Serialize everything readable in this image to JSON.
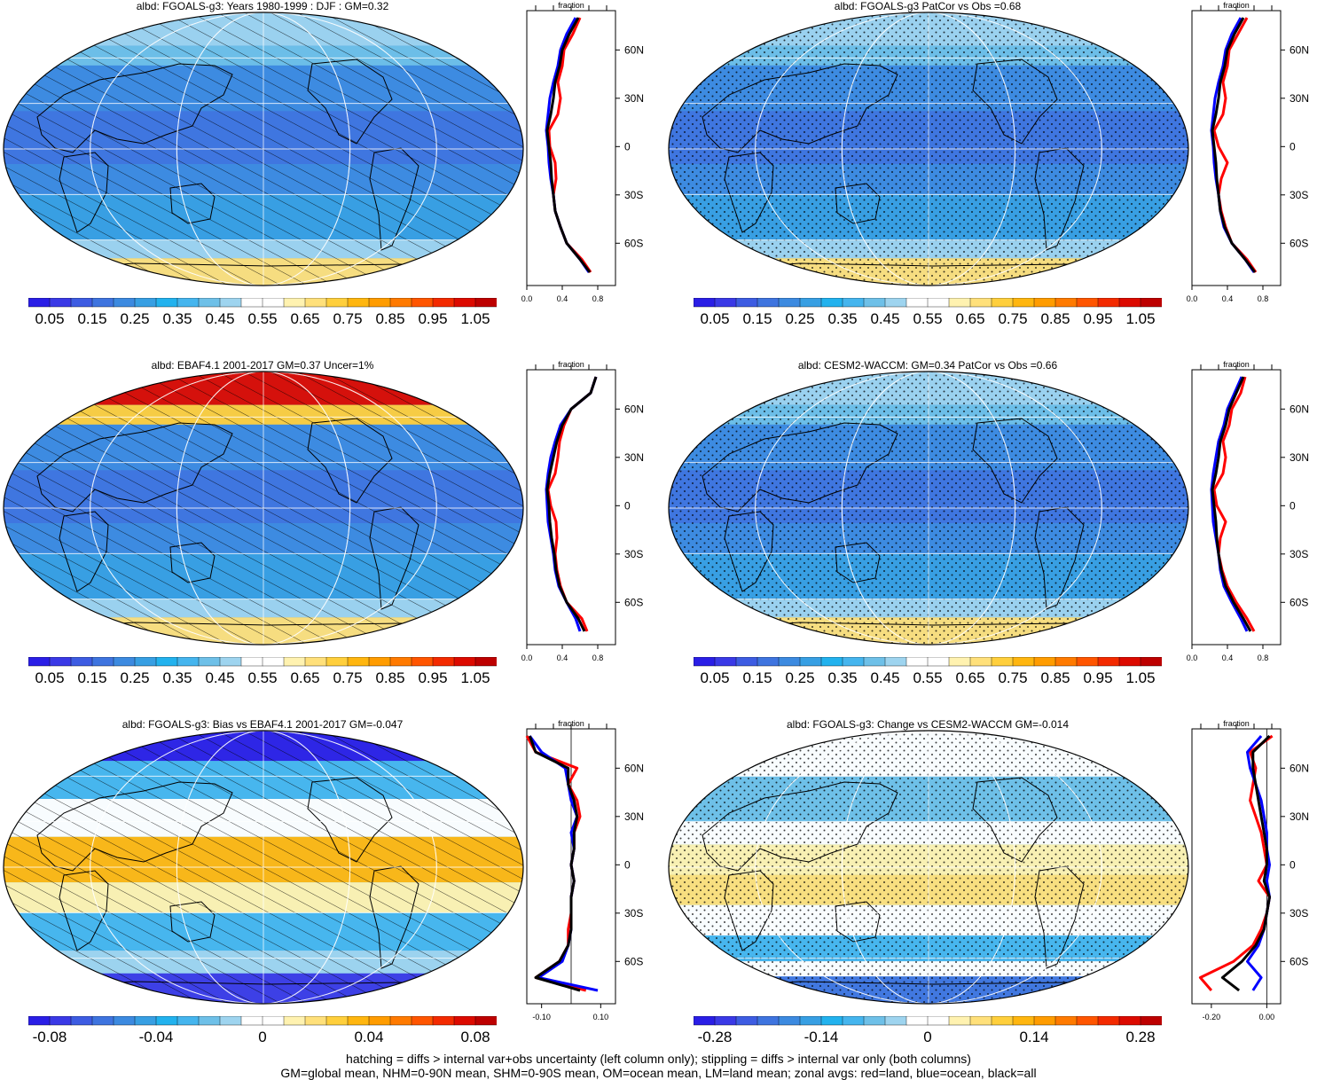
{
  "palettes": {
    "abs": [
      "#2a1ee6",
      "#3a39e6",
      "#3d5ce2",
      "#3e74df",
      "#3c8ae0",
      "#379fe3",
      "#22b2ee",
      "#45b5ee",
      "#6ec0e8",
      "#9ed4ef",
      "#ffffff",
      "#ffffff",
      "#fff2b0",
      "#ffe07a",
      "#ffcf3c",
      "#ffb60f",
      "#ff9c00",
      "#ff7a00",
      "#ff5500",
      "#f32a00",
      "#dc0a00",
      "#bd0000"
    ],
    "diff": [
      "#2a1ee6",
      "#3a39e6",
      "#3d5ce2",
      "#3e74df",
      "#3c8ae0",
      "#379fe3",
      "#22b2ee",
      "#45b5ee",
      "#6ec0e8",
      "#9ed4ef",
      "#ffffff",
      "#ffffff",
      "#fff2b0",
      "#ffe07a",
      "#ffcf3c",
      "#ffb60f",
      "#ff9c00",
      "#ff7a00",
      "#ff5500",
      "#f32a00",
      "#dc0a00",
      "#bd0000"
    ],
    "zonal_colors": {
      "land": "#ff0000",
      "ocean": "#0000ff",
      "all": "#000000"
    },
    "base_map": "#4a98e0"
  },
  "lat_labels": [
    "60N",
    "30N",
    "0",
    "30S",
    "60S"
  ],
  "panels": [
    {
      "title": "albd: FGOALS-g3: Years 1980-1999 : DJF : GM=0.32",
      "pattern": "hatch",
      "kind": "abs",
      "colorbar_labels": [
        "0.05",
        "0.15",
        "0.25",
        "0.35",
        "0.45",
        "0.55",
        "0.65",
        "0.75",
        "0.85",
        "0.95",
        "1.05"
      ],
      "zonal": {
        "label": "fraction",
        "xlim": [
          0,
          1.0
        ],
        "xticks": [
          "0.0",
          "0.4",
          "0.8"
        ],
        "lat": [
          -78,
          -70,
          -60,
          -50,
          -40,
          -30,
          -20,
          -10,
          0,
          10,
          20,
          30,
          40,
          50,
          60,
          70,
          80
        ],
        "land": [
          0.72,
          0.62,
          0.45,
          0.38,
          0.32,
          0.3,
          0.33,
          0.32,
          0.26,
          0.25,
          0.35,
          0.38,
          0.35,
          0.4,
          0.42,
          0.52,
          0.6
        ],
        "ocean": [
          0.7,
          0.6,
          0.45,
          0.38,
          0.32,
          0.3,
          0.27,
          0.25,
          0.24,
          0.22,
          0.24,
          0.26,
          0.3,
          0.35,
          0.38,
          0.45,
          0.55
        ],
        "all": [
          0.71,
          0.6,
          0.45,
          0.38,
          0.32,
          0.3,
          0.28,
          0.27,
          0.25,
          0.23,
          0.27,
          0.3,
          0.32,
          0.37,
          0.4,
          0.48,
          0.58
        ]
      }
    },
    {
      "title": "albd: FGOALS-g3 PatCor vs Obs =0.68",
      "pattern": "stipple",
      "kind": "abs",
      "colorbar_labels": [
        "0.05",
        "0.15",
        "0.25",
        "0.35",
        "0.45",
        "0.55",
        "0.65",
        "0.75",
        "0.85",
        "0.95",
        "1.05"
      ],
      "zonal": {
        "label": "fraction",
        "xlim": [
          0,
          1.0
        ],
        "xticks": [
          "0.0",
          "0.4",
          "0.8"
        ],
        "lat": [
          -78,
          -70,
          -60,
          -50,
          -40,
          -30,
          -20,
          -10,
          0,
          10,
          20,
          30,
          40,
          50,
          60,
          70,
          80
        ],
        "land": [
          0.72,
          0.62,
          0.45,
          0.38,
          0.33,
          0.3,
          0.33,
          0.4,
          0.3,
          0.25,
          0.35,
          0.38,
          0.35,
          0.4,
          0.42,
          0.52,
          0.62
        ],
        "ocean": [
          0.7,
          0.6,
          0.45,
          0.36,
          0.32,
          0.3,
          0.27,
          0.25,
          0.24,
          0.22,
          0.24,
          0.26,
          0.3,
          0.35,
          0.38,
          0.45,
          0.55
        ],
        "all": [
          0.71,
          0.6,
          0.45,
          0.37,
          0.32,
          0.3,
          0.28,
          0.27,
          0.25,
          0.23,
          0.27,
          0.3,
          0.32,
          0.37,
          0.4,
          0.48,
          0.58
        ]
      }
    },
    {
      "title": "albd: EBAF4.1 2001-2017 GM=0.37 Uncer=1%",
      "pattern": "hatch",
      "kind": "abs",
      "colorbar_labels": [
        "0.05",
        "0.15",
        "0.25",
        "0.35",
        "0.45",
        "0.55",
        "0.65",
        "0.75",
        "0.85",
        "0.95",
        "1.05"
      ],
      "zonal": {
        "label": "fraction",
        "xlim": [
          0,
          1.0
        ],
        "xticks": [
          "0.0",
          "0.4",
          "0.8"
        ],
        "lat": [
          -78,
          -70,
          -60,
          -50,
          -40,
          -30,
          -20,
          -10,
          0,
          10,
          20,
          30,
          40,
          50,
          60,
          70,
          80
        ],
        "land": [
          0.68,
          0.62,
          0.45,
          0.38,
          0.34,
          0.32,
          0.34,
          0.33,
          0.27,
          0.24,
          0.32,
          0.35,
          0.37,
          0.42,
          0.5,
          0.72,
          0.78
        ],
        "ocean": [
          0.6,
          0.55,
          0.45,
          0.36,
          0.32,
          0.3,
          0.27,
          0.24,
          0.23,
          0.22,
          0.24,
          0.27,
          0.32,
          0.38,
          0.5,
          0.72,
          0.78
        ],
        "all": [
          0.65,
          0.58,
          0.45,
          0.37,
          0.33,
          0.31,
          0.28,
          0.26,
          0.25,
          0.23,
          0.26,
          0.3,
          0.34,
          0.4,
          0.5,
          0.72,
          0.78
        ]
      }
    },
    {
      "title": "albd: CESM2-WACCM: GM=0.34 PatCor vs Obs =0.66",
      "pattern": "stipple",
      "kind": "abs",
      "colorbar_labels": [
        "0.05",
        "0.15",
        "0.25",
        "0.35",
        "0.45",
        "0.55",
        "0.65",
        "0.75",
        "0.85",
        "0.95",
        "1.05"
      ],
      "zonal": {
        "label": "fraction",
        "xlim": [
          0,
          1.0
        ],
        "xticks": [
          "0.0",
          "0.4",
          "0.8"
        ],
        "lat": [
          -78,
          -70,
          -60,
          -50,
          -40,
          -30,
          -20,
          -10,
          0,
          10,
          20,
          30,
          40,
          50,
          60,
          70,
          80
        ],
        "land": [
          0.7,
          0.62,
          0.5,
          0.4,
          0.34,
          0.3,
          0.32,
          0.38,
          0.28,
          0.25,
          0.35,
          0.38,
          0.35,
          0.42,
          0.45,
          0.55,
          0.6
        ],
        "ocean": [
          0.62,
          0.55,
          0.45,
          0.36,
          0.32,
          0.3,
          0.27,
          0.24,
          0.23,
          0.22,
          0.24,
          0.27,
          0.3,
          0.36,
          0.4,
          0.48,
          0.56
        ],
        "all": [
          0.66,
          0.58,
          0.47,
          0.38,
          0.33,
          0.3,
          0.28,
          0.27,
          0.25,
          0.23,
          0.27,
          0.3,
          0.32,
          0.38,
          0.42,
          0.5,
          0.58
        ]
      }
    },
    {
      "title": "albd: FGOALS-g3: Bias vs EBAF4.1 2001-2017 GM=-0.047",
      "pattern": "hatch",
      "kind": "diff",
      "colorbar_labels": [
        "-0.08",
        "-0.04",
        "0",
        "0.04",
        "0.08"
      ],
      "zonal": {
        "label": "fraction",
        "xlim": [
          -0.15,
          0.15
        ],
        "xticks": [
          "-0.10",
          "0.10"
        ],
        "lat": [
          -78,
          -70,
          -60,
          -50,
          -40,
          -30,
          -20,
          -10,
          0,
          10,
          20,
          30,
          40,
          50,
          60,
          70,
          80
        ],
        "land": [
          0.05,
          -0.12,
          -0.04,
          -0.01,
          -0.01,
          0.0,
          0.0,
          0.01,
          0.0,
          0.01,
          0.01,
          0.03,
          0.02,
          -0.01,
          0.02,
          -0.12,
          -0.15
        ],
        "ocean": [
          0.09,
          -0.11,
          -0.03,
          -0.01,
          0.0,
          0.0,
          0.0,
          0.01,
          0.0,
          0.01,
          0.0,
          0.02,
          0.0,
          -0.01,
          -0.02,
          -0.1,
          -0.14
        ],
        "all": [
          0.03,
          -0.12,
          -0.04,
          -0.01,
          0.0,
          0.0,
          0.0,
          0.01,
          0.0,
          0.01,
          0.01,
          0.02,
          0.01,
          -0.01,
          -0.01,
          -0.12,
          -0.14
        ]
      }
    },
    {
      "title": "albd: FGOALS-g3: Change vs CESM2-WACCM GM=-0.014",
      "pattern": "stipple",
      "kind": "diff",
      "colorbar_labels": [
        "-0.28",
        "-0.14",
        "0",
        "0.14",
        "0.28"
      ],
      "zonal": {
        "label": "fraction",
        "xlim": [
          -0.27,
          0.05
        ],
        "xticks": [
          "-0.20",
          "0.00"
        ],
        "lat": [
          -78,
          -70,
          -60,
          -50,
          -40,
          -30,
          -20,
          -10,
          0,
          10,
          20,
          30,
          40,
          50,
          60,
          70,
          80
        ],
        "land": [
          -0.2,
          -0.24,
          -0.12,
          -0.05,
          -0.02,
          0.0,
          0.01,
          -0.03,
          0.0,
          -0.01,
          -0.02,
          -0.04,
          -0.06,
          -0.05,
          -0.04,
          -0.06,
          0.02
        ],
        "ocean": [
          -0.05,
          -0.02,
          -0.07,
          -0.03,
          -0.01,
          0.0,
          0.01,
          0.0,
          0.01,
          0.0,
          0.0,
          -0.01,
          -0.02,
          -0.04,
          -0.06,
          -0.07,
          -0.02
        ],
        "all": [
          -0.1,
          -0.16,
          -0.09,
          -0.04,
          -0.01,
          0.0,
          0.01,
          -0.01,
          0.0,
          0.0,
          -0.01,
          -0.02,
          -0.03,
          -0.04,
          -0.05,
          -0.05,
          0.01
        ]
      }
    }
  ],
  "footer": {
    "line1": "hatching = diffs > internal var+obs uncertainty (left column only); stippling = diffs > internal var only (both columns)",
    "line2": "GM=global mean, NHM=0-90N mean, SHM=0-90S mean, OM=ocean mean, LM=land mean; zonal avgs: red=land, blue=ocean, black=all"
  }
}
